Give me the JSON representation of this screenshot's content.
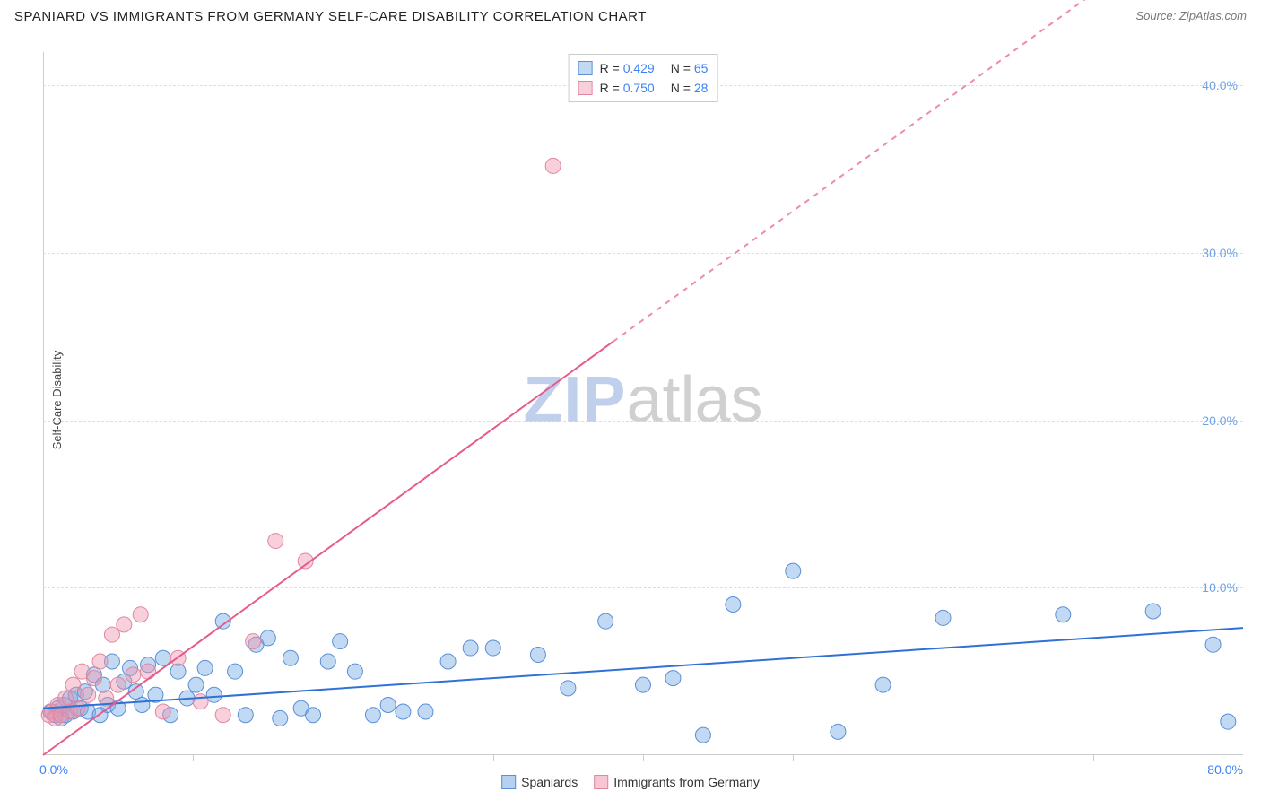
{
  "header": {
    "title": "SPANIARD VS IMMIGRANTS FROM GERMANY SELF-CARE DISABILITY CORRELATION CHART",
    "source": "Source: ZipAtlas.com"
  },
  "ylabel": "Self-Care Disability",
  "watermark": {
    "part1": "ZIP",
    "part2": "atlas"
  },
  "chart": {
    "type": "scatter",
    "background_color": "#ffffff",
    "grid_color": "#dddddd",
    "axis_color": "#cccccc",
    "xlim": [
      0,
      80
    ],
    "ylim": [
      0,
      42
    ],
    "x_tick_marks": [
      10,
      20,
      30,
      40,
      50,
      60,
      70
    ],
    "x_labels": [
      {
        "value": 0,
        "text": "0.0%",
        "color": "#3b82f6"
      },
      {
        "value": 80,
        "text": "80.0%",
        "color": "#3b82f6"
      }
    ],
    "y_grid": [
      {
        "value": 10,
        "text": "10.0%",
        "color": "#6fa3e8"
      },
      {
        "value": 20,
        "text": "20.0%",
        "color": "#6fa3e8"
      },
      {
        "value": 30,
        "text": "30.0%",
        "color": "#6fa3e8"
      },
      {
        "value": 40,
        "text": "40.0%",
        "color": "#6fa3e8"
      }
    ],
    "series": [
      {
        "name": "Spaniards",
        "marker_fill": "rgba(120,170,230,0.45)",
        "marker_stroke": "#5b8fd6",
        "marker_radius": 8.5,
        "line_color": "#2f72d4",
        "line_width": 2,
        "regression": {
          "x1": 0,
          "y1": 2.8,
          "x2": 80,
          "y2": 7.6,
          "dash_after_x": null
        },
        "stats": {
          "R": "0.429",
          "N": "65"
        },
        "points": [
          [
            0.5,
            2.6
          ],
          [
            0.8,
            2.4
          ],
          [
            1.0,
            2.8
          ],
          [
            1.2,
            2.2
          ],
          [
            1.4,
            3.0
          ],
          [
            1.5,
            2.4
          ],
          [
            1.8,
            3.4
          ],
          [
            2.0,
            2.6
          ],
          [
            2.2,
            3.6
          ],
          [
            2.5,
            2.8
          ],
          [
            2.8,
            3.8
          ],
          [
            3.0,
            2.6
          ],
          [
            3.4,
            4.8
          ],
          [
            3.8,
            2.4
          ],
          [
            4.0,
            4.2
          ],
          [
            4.3,
            3.0
          ],
          [
            4.6,
            5.6
          ],
          [
            5.0,
            2.8
          ],
          [
            5.4,
            4.4
          ],
          [
            5.8,
            5.2
          ],
          [
            6.2,
            3.8
          ],
          [
            6.6,
            3.0
          ],
          [
            7.0,
            5.4
          ],
          [
            7.5,
            3.6
          ],
          [
            8.0,
            5.8
          ],
          [
            8.5,
            2.4
          ],
          [
            9.0,
            5.0
          ],
          [
            9.6,
            3.4
          ],
          [
            10.2,
            4.2
          ],
          [
            10.8,
            5.2
          ],
          [
            11.4,
            3.6
          ],
          [
            12.0,
            8.0
          ],
          [
            12.8,
            5.0
          ],
          [
            13.5,
            2.4
          ],
          [
            14.2,
            6.6
          ],
          [
            15.0,
            7.0
          ],
          [
            15.8,
            2.2
          ],
          [
            16.5,
            5.8
          ],
          [
            17.2,
            2.8
          ],
          [
            18.0,
            2.4
          ],
          [
            19.0,
            5.6
          ],
          [
            19.8,
            6.8
          ],
          [
            20.8,
            5.0
          ],
          [
            22.0,
            2.4
          ],
          [
            23.0,
            3.0
          ],
          [
            24.0,
            2.6
          ],
          [
            25.5,
            2.6
          ],
          [
            27.0,
            5.6
          ],
          [
            28.5,
            6.4
          ],
          [
            30.0,
            6.4
          ],
          [
            33.0,
            6.0
          ],
          [
            35.0,
            4.0
          ],
          [
            37.5,
            8.0
          ],
          [
            40.0,
            4.2
          ],
          [
            42.0,
            4.6
          ],
          [
            44.0,
            1.2
          ],
          [
            46.0,
            9.0
          ],
          [
            50.0,
            11.0
          ],
          [
            53.0,
            1.4
          ],
          [
            56.0,
            4.2
          ],
          [
            60.0,
            8.2
          ],
          [
            68.0,
            8.4
          ],
          [
            74.0,
            8.6
          ],
          [
            78.0,
            6.6
          ],
          [
            79.0,
            2.0
          ]
        ]
      },
      {
        "name": "Immigrants from Germany",
        "marker_fill": "rgba(240,150,175,0.45)",
        "marker_stroke": "#e0879f",
        "marker_radius": 8.5,
        "line_color": "#e75a8c",
        "line_width": 2,
        "regression": {
          "x1": 0,
          "y1": 0.0,
          "x2": 80,
          "y2": 52.0,
          "dash_after_x": 38
        },
        "stats": {
          "R": "0.750",
          "N": "28"
        },
        "points": [
          [
            0.4,
            2.4
          ],
          [
            0.6,
            2.6
          ],
          [
            0.8,
            2.2
          ],
          [
            1.0,
            3.0
          ],
          [
            1.2,
            2.4
          ],
          [
            1.5,
            3.4
          ],
          [
            1.8,
            2.6
          ],
          [
            2.0,
            4.2
          ],
          [
            2.3,
            2.8
          ],
          [
            2.6,
            5.0
          ],
          [
            3.0,
            3.6
          ],
          [
            3.4,
            4.6
          ],
          [
            3.8,
            5.6
          ],
          [
            4.2,
            3.4
          ],
          [
            4.6,
            7.2
          ],
          [
            5.0,
            4.2
          ],
          [
            5.4,
            7.8
          ],
          [
            6.0,
            4.8
          ],
          [
            6.5,
            8.4
          ],
          [
            7.0,
            5.0
          ],
          [
            8.0,
            2.6
          ],
          [
            9.0,
            5.8
          ],
          [
            10.5,
            3.2
          ],
          [
            12.0,
            2.4
          ],
          [
            14.0,
            6.8
          ],
          [
            15.5,
            12.8
          ],
          [
            17.5,
            11.6
          ],
          [
            34.0,
            35.2
          ]
        ]
      }
    ]
  },
  "legend_bottom": [
    {
      "swatch_fill": "rgba(120,170,230,0.55)",
      "swatch_stroke": "#5b8fd6",
      "label": "Spaniards"
    },
    {
      "swatch_fill": "rgba(240,150,175,0.55)",
      "swatch_stroke": "#e0879f",
      "label": "Immigrants from Germany"
    }
  ]
}
